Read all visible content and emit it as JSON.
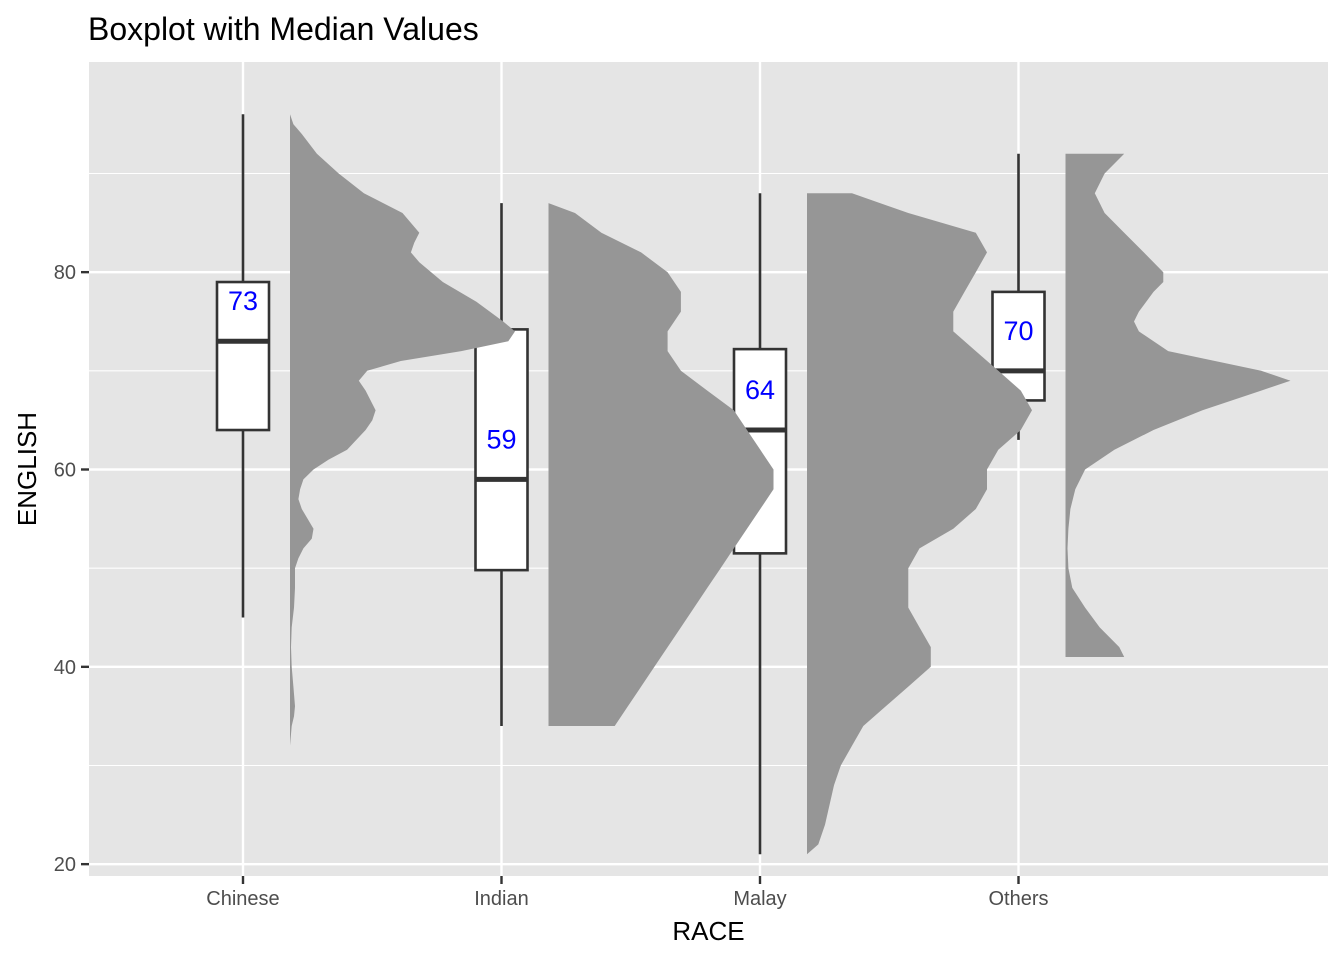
{
  "chart_data": {
    "type": "boxplot",
    "title": "Boxplot with Median Values",
    "xlabel": "RACE",
    "ylabel": "ENGLISH",
    "ylim": [
      18.8,
      101.3
    ],
    "y_ticks": [
      20,
      40,
      60,
      80
    ],
    "y_tick_labels": [
      "20",
      "40",
      "60",
      "80"
    ],
    "y_minor_ticks": [
      30,
      50,
      70,
      90
    ],
    "grid": true,
    "colors": {
      "panel": "#e5e5e5",
      "grid": "#ffffff",
      "box_fill": "#ffffff",
      "box_line": "#333333",
      "density": "#969696",
      "median_label": "#0000ff"
    },
    "categories": [
      "Chinese",
      "Indian",
      "Malay",
      "Others"
    ],
    "groups": [
      {
        "name": "Chinese",
        "min": 45,
        "q1": 64,
        "median": 73,
        "q3": 79,
        "max": 96,
        "median_label": "73",
        "density_range": [
          26,
          96
        ],
        "density_profile": [
          [
            96,
            0.0
          ],
          [
            95,
            0.01
          ],
          [
            94,
            0.035
          ],
          [
            92,
            0.08
          ],
          [
            90,
            0.145
          ],
          [
            88,
            0.22
          ],
          [
            86,
            0.335
          ],
          [
            84,
            0.385
          ],
          [
            83,
            0.37
          ],
          [
            82,
            0.36
          ],
          [
            81,
            0.385
          ],
          [
            79,
            0.455
          ],
          [
            77,
            0.555
          ],
          [
            75,
            0.635
          ],
          [
            74,
            0.67
          ],
          [
            73,
            0.65
          ],
          [
            72,
            0.51
          ],
          [
            71,
            0.33
          ],
          [
            70,
            0.23
          ],
          [
            69,
            0.205
          ],
          [
            68,
            0.225
          ],
          [
            66,
            0.255
          ],
          [
            65,
            0.245
          ],
          [
            64,
            0.225
          ],
          [
            62,
            0.17
          ],
          [
            61,
            0.115
          ],
          [
            60,
            0.07
          ],
          [
            59,
            0.04
          ],
          [
            58,
            0.03
          ],
          [
            57,
            0.025
          ],
          [
            56,
            0.035
          ],
          [
            54,
            0.07
          ],
          [
            53,
            0.065
          ],
          [
            52,
            0.04
          ],
          [
            51,
            0.025
          ],
          [
            50,
            0.015
          ],
          [
            48,
            0.015
          ],
          [
            46,
            0.012
          ],
          [
            44,
            0.005
          ],
          [
            42,
            0.003
          ],
          [
            40,
            0.005
          ],
          [
            38,
            0.01
          ],
          [
            36,
            0.015
          ],
          [
            35,
            0.012
          ],
          [
            34,
            0.005
          ],
          [
            32,
            0.0
          ],
          [
            30,
            0.0
          ],
          [
            28,
            0.0
          ],
          [
            26,
            0.0
          ]
        ]
      },
      {
        "name": "Indian",
        "min": 34,
        "q1": 49.8,
        "median": 59,
        "q3": 74.2,
        "max": 87,
        "median_label": "59",
        "density_range": [
          34,
          87
        ],
        "density_profile": [
          [
            87,
            0.0
          ],
          [
            86,
            0.01
          ],
          [
            84,
            0.02
          ],
          [
            82,
            0.035
          ],
          [
            80,
            0.045
          ],
          [
            78,
            0.05
          ],
          [
            76,
            0.05
          ],
          [
            74,
            0.045
          ],
          [
            72,
            0.045
          ],
          [
            70,
            0.05
          ],
          [
            68,
            0.06
          ],
          [
            66,
            0.07
          ],
          [
            64,
            0.075
          ],
          [
            62,
            0.08
          ],
          [
            60,
            0.085
          ],
          [
            58,
            0.085
          ],
          [
            56,
            0.08
          ],
          [
            54,
            0.075
          ],
          [
            52,
            0.07
          ],
          [
            50,
            0.065
          ],
          [
            48,
            0.06
          ],
          [
            46,
            0.055
          ],
          [
            44,
            0.05
          ],
          [
            42,
            0.045
          ],
          [
            40,
            0.04
          ],
          [
            38,
            0.035
          ],
          [
            36,
            0.03
          ],
          [
            34,
            0.025
          ]
        ]
      },
      {
        "name": "Malay",
        "min": 21,
        "q1": 51.5,
        "median": 64,
        "q3": 72.2,
        "max": 88,
        "median_label": "64",
        "density_range": [
          21,
          88
        ],
        "density_profile": [
          [
            88,
            0.02
          ],
          [
            86,
            0.045
          ],
          [
            84,
            0.075
          ],
          [
            82,
            0.08
          ],
          [
            80,
            0.075
          ],
          [
            78,
            0.07
          ],
          [
            76,
            0.065
          ],
          [
            74,
            0.065
          ],
          [
            72,
            0.075
          ],
          [
            70,
            0.085
          ],
          [
            68,
            0.095
          ],
          [
            66,
            0.1
          ],
          [
            64,
            0.095
          ],
          [
            62,
            0.085
          ],
          [
            60,
            0.08
          ],
          [
            58,
            0.08
          ],
          [
            56,
            0.075
          ],
          [
            54,
            0.065
          ],
          [
            52,
            0.05
          ],
          [
            50,
            0.045
          ],
          [
            48,
            0.045
          ],
          [
            46,
            0.045
          ],
          [
            44,
            0.05
          ],
          [
            42,
            0.055
          ],
          [
            40,
            0.055
          ],
          [
            38,
            0.045
          ],
          [
            36,
            0.035
          ],
          [
            34,
            0.025
          ],
          [
            32,
            0.02
          ],
          [
            30,
            0.015
          ],
          [
            28,
            0.012
          ],
          [
            26,
            0.01
          ],
          [
            24,
            0.008
          ],
          [
            22,
            0.005
          ],
          [
            21,
            0.0
          ]
        ]
      },
      {
        "name": "Others",
        "min": 63,
        "q1": 67,
        "median": 70,
        "q3": 78,
        "max": 92,
        "median_label": "70",
        "density_range": [
          41,
          92
        ],
        "density_profile": [
          [
            92,
            0.06
          ],
          [
            90,
            0.04
          ],
          [
            88,
            0.03
          ],
          [
            86,
            0.04
          ],
          [
            84,
            0.06
          ],
          [
            82,
            0.08
          ],
          [
            80,
            0.1
          ],
          [
            79,
            0.1
          ],
          [
            78,
            0.09
          ],
          [
            76,
            0.075
          ],
          [
            75,
            0.07
          ],
          [
            74,
            0.075
          ],
          [
            72,
            0.105
          ],
          [
            70,
            0.2
          ],
          [
            69,
            0.23
          ],
          [
            68,
            0.2
          ],
          [
            66,
            0.14
          ],
          [
            64,
            0.09
          ],
          [
            62,
            0.05
          ],
          [
            60,
            0.02
          ],
          [
            58,
            0.01
          ],
          [
            56,
            0.005
          ],
          [
            54,
            0.003
          ],
          [
            52,
            0.002
          ],
          [
            50,
            0.003
          ],
          [
            48,
            0.007
          ],
          [
            46,
            0.02
          ],
          [
            44,
            0.035
          ],
          [
            42,
            0.055
          ],
          [
            41,
            0.06
          ]
        ]
      }
    ]
  }
}
